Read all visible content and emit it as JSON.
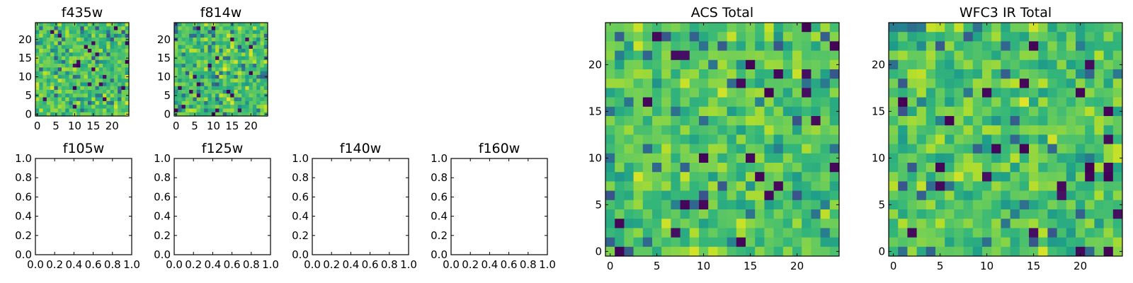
{
  "chart_data": [
    {
      "type": "heatmap",
      "title": "f435w",
      "grid_size": 25,
      "xticks": [
        "0",
        "5",
        "10",
        "15",
        "20"
      ],
      "yticks": [
        "0",
        "5",
        "10",
        "15",
        "20"
      ],
      "xlim": [
        -0.5,
        24.5
      ],
      "ylim": [
        -0.5,
        24.5
      ],
      "colormap": "viridis",
      "seed": 11
    },
    {
      "type": "heatmap",
      "title": "f814w",
      "grid_size": 25,
      "xticks": [
        "0",
        "5",
        "10",
        "15",
        "20"
      ],
      "yticks": [
        "0",
        "5",
        "10",
        "15",
        "20"
      ],
      "xlim": [
        -0.5,
        24.5
      ],
      "ylim": [
        -0.5,
        24.5
      ],
      "colormap": "viridis",
      "seed": 23
    },
    {
      "type": "heatmap",
      "title": "f105w",
      "empty": true,
      "xticks": [
        "0.0",
        "0.2",
        "0.4",
        "0.6",
        "0.8",
        "1.0"
      ],
      "yticks": [
        "0.0",
        "0.2",
        "0.4",
        "0.6",
        "0.8",
        "1.0"
      ],
      "xlim": [
        0,
        1
      ],
      "ylim": [
        0,
        1
      ]
    },
    {
      "type": "heatmap",
      "title": "f125w",
      "empty": true,
      "xticks": [
        "0.0",
        "0.2",
        "0.4",
        "0.6",
        "0.8",
        "1.0"
      ],
      "yticks": [
        "0.0",
        "0.2",
        "0.4",
        "0.6",
        "0.8",
        "1.0"
      ],
      "xlim": [
        0,
        1
      ],
      "ylim": [
        0,
        1
      ]
    },
    {
      "type": "heatmap",
      "title": "f140w",
      "empty": true,
      "xticks": [
        "0.0",
        "0.2",
        "0.4",
        "0.6",
        "0.8",
        "1.0"
      ],
      "yticks": [
        "0.0",
        "0.2",
        "0.4",
        "0.6",
        "0.8",
        "1.0"
      ],
      "xlim": [
        0,
        1
      ],
      "ylim": [
        0,
        1
      ]
    },
    {
      "type": "heatmap",
      "title": "f160w",
      "empty": true,
      "xticks": [
        "0.0",
        "0.2",
        "0.4",
        "0.6",
        "0.8",
        "1.0"
      ],
      "yticks": [
        "0.0",
        "0.2",
        "0.4",
        "0.6",
        "0.8",
        "1.0"
      ],
      "xlim": [
        0,
        1
      ],
      "ylim": [
        0,
        1
      ]
    },
    {
      "type": "heatmap",
      "title": "ACS Total",
      "grid_size": 25,
      "xticks": [
        "0",
        "5",
        "10",
        "15",
        "20"
      ],
      "yticks": [
        "0",
        "5",
        "10",
        "15",
        "20"
      ],
      "xlim": [
        -0.5,
        24.5
      ],
      "ylim": [
        -0.5,
        24.5
      ],
      "colormap": "viridis",
      "seed": 37
    },
    {
      "type": "heatmap",
      "title": "WFC3 IR Total",
      "grid_size": 25,
      "xticks": [
        "0",
        "5",
        "10",
        "15",
        "20"
      ],
      "yticks": [
        "0",
        "5",
        "10",
        "15",
        "20"
      ],
      "xlim": [
        -0.5,
        24.5
      ],
      "ylim": [
        -0.5,
        24.5
      ],
      "colormap": "viridis",
      "seed": 53
    }
  ]
}
